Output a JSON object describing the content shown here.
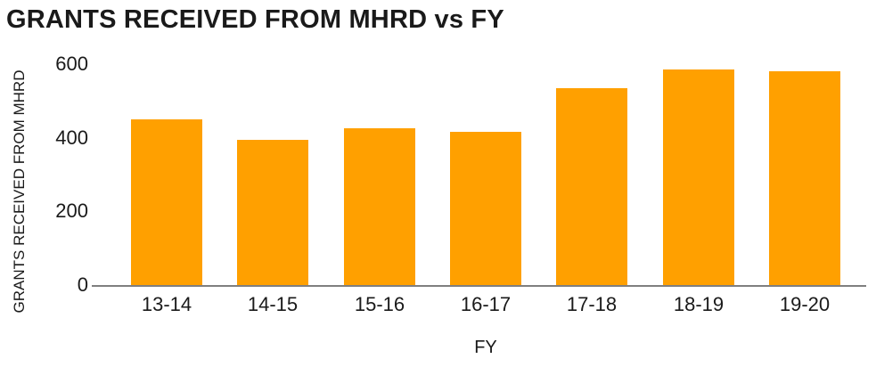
{
  "chart_data": {
    "type": "bar",
    "title": "GRANTS RECEIVED FROM MHRD vs FY",
    "xlabel": "FY",
    "ylabel": "GRANTS RECEIVED FROM MHRD",
    "categories": [
      "13-14",
      "14-15",
      "15-16",
      "16-17",
      "17-18",
      "18-19",
      "19-20"
    ],
    "values": [
      450,
      395,
      425,
      415,
      535,
      585,
      580
    ],
    "ylim": [
      0,
      600
    ],
    "yticks": [
      0,
      200,
      400,
      600
    ],
    "grid": false,
    "legend": "none",
    "bar_color": "#FFA000",
    "axis_color": "#7F7F7F",
    "text_color": "#1A1A1A",
    "background_color": "#FFFFFF"
  }
}
